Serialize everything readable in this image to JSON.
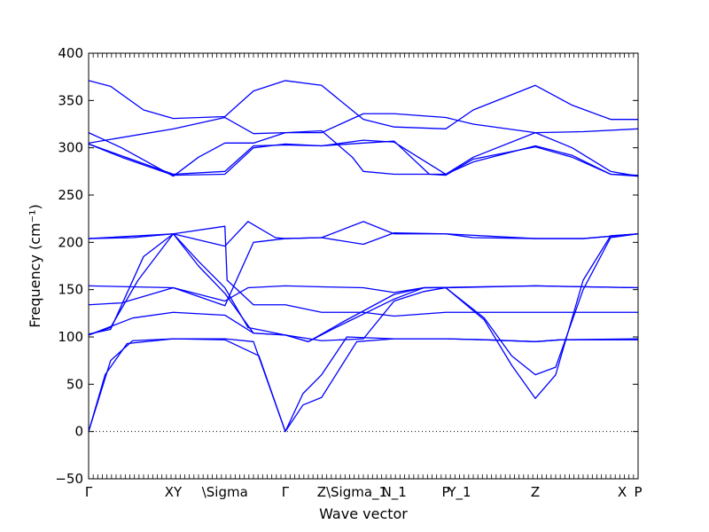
{
  "chart_data": {
    "type": "line",
    "xlabel": "Wave vector",
    "ylabel": "Frequency (cm⁻¹)",
    "ylim": [
      -50,
      400
    ],
    "xlim": [
      0,
      1
    ],
    "yticks": [
      -50,
      0,
      50,
      100,
      150,
      200,
      250,
      300,
      350,
      400
    ],
    "high_symmetry_points": [
      {
        "label": "Γ",
        "x": 0.0
      },
      {
        "label": "XY",
        "x": 0.154
      },
      {
        "label": "\\Sigma",
        "x": 0.248
      },
      {
        "label": "Γ",
        "x": 0.358
      },
      {
        "label": "Z",
        "x": 0.424
      },
      {
        "label": "\\Sigma_1",
        "x": 0.488
      },
      {
        "label": "N_1",
        "x": 0.556
      },
      {
        "label": "P",
        "x": 0.65
      },
      {
        "label": "Y_1",
        "x": 0.675
      },
      {
        "label": "Z",
        "x": 0.813
      },
      {
        "label": "X",
        "x": 0.971
      },
      {
        "label": "P",
        "x": 1.0
      }
    ],
    "series_color": "#0000ff",
    "zero_line": {
      "y": 0,
      "style": "dotted"
    },
    "series": [
      {
        "points": [
          [
            0,
            0
          ],
          [
            0.03,
            60
          ],
          [
            0.07,
            93
          ],
          [
            0.154,
            98
          ],
          [
            0.248,
            98
          ],
          [
            0.3,
            95
          ],
          [
            0.358,
            0
          ],
          [
            0.39,
            28
          ],
          [
            0.424,
            36
          ],
          [
            0.488,
            95
          ],
          [
            0.556,
            98
          ],
          [
            0.65,
            98
          ],
          [
            0.72,
            97
          ],
          [
            0.813,
            95
          ],
          [
            0.86,
            97
          ],
          [
            1,
            98
          ]
        ]
      },
      {
        "points": [
          [
            0,
            0
          ],
          [
            0.04,
            75
          ],
          [
            0.08,
            96
          ],
          [
            0.154,
            98
          ],
          [
            0.248,
            97
          ],
          [
            0.31,
            80
          ],
          [
            0.358,
            0
          ],
          [
            0.39,
            40
          ],
          [
            0.424,
            60
          ],
          [
            0.47,
            100
          ],
          [
            0.556,
            98
          ],
          [
            0.65,
            98
          ],
          [
            0.72,
            97
          ],
          [
            0.813,
            95
          ],
          [
            0.86,
            97
          ],
          [
            1,
            97
          ]
        ]
      },
      {
        "points": [
          [
            0,
            102
          ],
          [
            0.04,
            110
          ],
          [
            0.09,
            160
          ],
          [
            0.154,
            209
          ],
          [
            0.2,
            175
          ],
          [
            0.248,
            146
          ],
          [
            0.3,
            104
          ],
          [
            0.358,
            102
          ],
          [
            0.4,
            95
          ],
          [
            0.45,
            110
          ],
          [
            0.556,
            140
          ],
          [
            0.61,
            152
          ],
          [
            0.65,
            152
          ],
          [
            0.72,
            118
          ],
          [
            0.77,
            70
          ],
          [
            0.813,
            35
          ],
          [
            0.85,
            60
          ],
          [
            0.9,
            160
          ],
          [
            0.95,
            207
          ],
          [
            1,
            209
          ]
        ]
      },
      {
        "points": [
          [
            0,
            103
          ],
          [
            0.04,
            108
          ],
          [
            0.1,
            185
          ],
          [
            0.154,
            209
          ],
          [
            0.2,
            180
          ],
          [
            0.248,
            152
          ],
          [
            0.29,
            110
          ],
          [
            0.358,
            102
          ],
          [
            0.4,
            95
          ],
          [
            0.46,
            115
          ],
          [
            0.556,
            145
          ],
          [
            0.61,
            152
          ],
          [
            0.65,
            152
          ],
          [
            0.72,
            120
          ],
          [
            0.77,
            80
          ],
          [
            0.813,
            60
          ],
          [
            0.85,
            68
          ],
          [
            0.9,
            150
          ],
          [
            0.95,
            205
          ],
          [
            1,
            209
          ]
        ]
      },
      {
        "points": [
          [
            0,
            134
          ],
          [
            0.06,
            136
          ],
          [
            0.154,
            152
          ],
          [
            0.248,
            133
          ],
          [
            0.3,
            200
          ],
          [
            0.358,
            204
          ],
          [
            0.424,
            205
          ],
          [
            0.5,
            198
          ],
          [
            0.556,
            210
          ],
          [
            0.65,
            209
          ],
          [
            0.7,
            205
          ],
          [
            0.813,
            204
          ],
          [
            0.9,
            204
          ],
          [
            1,
            209
          ]
        ]
      },
      {
        "points": [
          [
            0,
            154
          ],
          [
            0.154,
            152
          ],
          [
            0.248,
            138
          ],
          [
            0.29,
            152
          ],
          [
            0.358,
            154
          ],
          [
            0.424,
            153
          ],
          [
            0.5,
            152
          ],
          [
            0.556,
            147
          ],
          [
            0.61,
            152
          ],
          [
            0.813,
            154
          ],
          [
            1,
            152
          ]
        ]
      },
      {
        "points": [
          [
            0,
            204
          ],
          [
            0.08,
            205
          ],
          [
            0.154,
            209
          ],
          [
            0.248,
            196
          ],
          [
            0.29,
            222
          ],
          [
            0.34,
            205
          ],
          [
            0.358,
            204
          ],
          [
            0.424,
            205
          ],
          [
            0.5,
            222
          ],
          [
            0.556,
            209
          ],
          [
            0.65,
            209
          ],
          [
            0.813,
            204
          ],
          [
            0.9,
            204
          ],
          [
            1,
            209
          ]
        ]
      },
      {
        "points": [
          [
            0,
            204
          ],
          [
            0.154,
            209
          ],
          [
            0.248,
            217
          ],
          [
            0.252,
            160
          ],
          [
            0.3,
            134
          ],
          [
            0.358,
            134
          ],
          [
            0.424,
            126
          ],
          [
            0.5,
            126
          ],
          [
            0.556,
            122
          ],
          [
            0.65,
            126
          ],
          [
            0.813,
            126
          ],
          [
            0.9,
            126
          ],
          [
            1,
            126
          ]
        ]
      },
      {
        "points": [
          [
            0,
            102
          ],
          [
            0.08,
            120
          ],
          [
            0.154,
            126
          ],
          [
            0.248,
            123
          ],
          [
            0.3,
            104
          ],
          [
            0.358,
            102
          ],
          [
            0.424,
            96
          ],
          [
            0.5,
            98
          ],
          [
            0.556,
            138
          ],
          [
            0.61,
            148
          ],
          [
            0.65,
            152
          ],
          [
            0.813,
            154
          ],
          [
            1,
            152
          ]
        ]
      },
      {
        "points": [
          [
            0,
            371
          ],
          [
            0.04,
            365
          ],
          [
            0.1,
            340
          ],
          [
            0.154,
            331
          ],
          [
            0.248,
            333
          ],
          [
            0.3,
            360
          ],
          [
            0.358,
            371
          ],
          [
            0.424,
            366
          ],
          [
            0.5,
            330
          ],
          [
            0.556,
            322
          ],
          [
            0.65,
            320
          ],
          [
            0.7,
            340
          ],
          [
            0.813,
            366
          ],
          [
            0.88,
            345
          ],
          [
            0.95,
            330
          ],
          [
            1,
            330
          ]
        ]
      },
      {
        "points": [
          [
            0,
            305
          ],
          [
            0.154,
            320
          ],
          [
            0.248,
            332
          ],
          [
            0.3,
            315
          ],
          [
            0.358,
            316
          ],
          [
            0.424,
            316
          ],
          [
            0.5,
            336
          ],
          [
            0.556,
            336
          ],
          [
            0.65,
            332
          ],
          [
            0.7,
            325
          ],
          [
            0.813,
            316
          ],
          [
            0.9,
            317
          ],
          [
            1,
            320
          ]
        ]
      },
      {
        "points": [
          [
            0,
            316
          ],
          [
            0.06,
            300
          ],
          [
            0.154,
            270
          ],
          [
            0.2,
            290
          ],
          [
            0.248,
            305
          ],
          [
            0.3,
            305
          ],
          [
            0.358,
            316
          ],
          [
            0.424,
            318
          ],
          [
            0.48,
            290
          ],
          [
            0.5,
            275
          ],
          [
            0.556,
            272
          ],
          [
            0.65,
            272
          ],
          [
            0.7,
            290
          ],
          [
            0.813,
            316
          ],
          [
            0.88,
            300
          ],
          [
            0.95,
            275
          ],
          [
            1,
            270
          ]
        ]
      },
      {
        "points": [
          [
            0,
            304
          ],
          [
            0.06,
            290
          ],
          [
            0.154,
            271
          ],
          [
            0.248,
            272
          ],
          [
            0.3,
            300
          ],
          [
            0.358,
            304
          ],
          [
            0.424,
            302
          ],
          [
            0.5,
            308
          ],
          [
            0.556,
            306
          ],
          [
            0.6,
            290
          ],
          [
            0.65,
            272
          ],
          [
            0.7,
            285
          ],
          [
            0.813,
            302
          ],
          [
            0.88,
            292
          ],
          [
            0.95,
            272
          ],
          [
            1,
            271
          ]
        ]
      },
      {
        "points": [
          [
            0,
            304
          ],
          [
            0.154,
            272
          ],
          [
            0.248,
            275
          ],
          [
            0.3,
            302
          ],
          [
            0.358,
            303
          ],
          [
            0.424,
            302
          ],
          [
            0.5,
            305
          ],
          [
            0.556,
            307
          ],
          [
            0.62,
            272
          ],
          [
            0.65,
            271
          ],
          [
            0.7,
            288
          ],
          [
            0.813,
            301
          ],
          [
            0.88,
            290
          ],
          [
            0.95,
            272
          ],
          [
            1,
            270
          ]
        ]
      }
    ]
  }
}
